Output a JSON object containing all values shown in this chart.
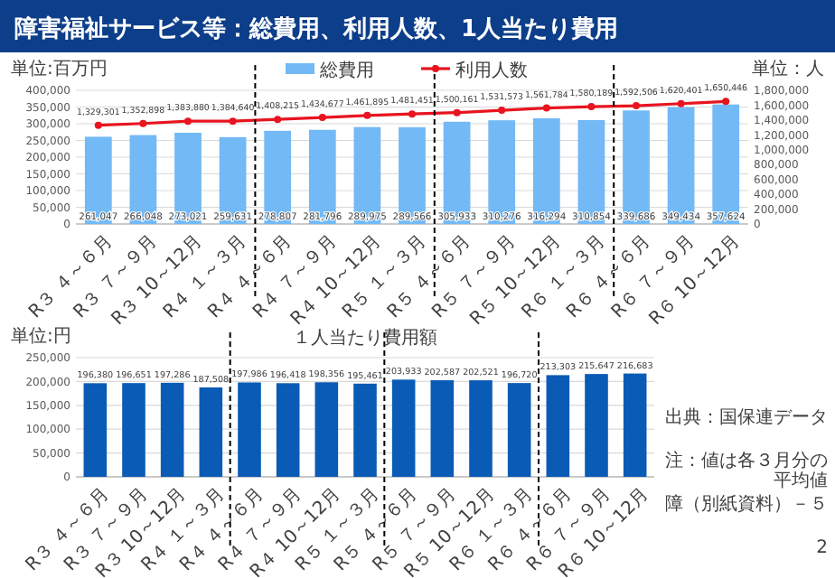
{
  "chart_data": [
    {
      "type": "bar",
      "title": "障害福祉サービス等：総費用、利用人数、1人当たり費用",
      "ylabel": "単位:百万円",
      "y2label": "単位：人",
      "categories": [
        "R３ ４～６月",
        "R３ ７～９月",
        "R３ 10～12月",
        "R４ １～３月",
        "R４ ４～６月",
        "R４ ７～９月",
        "R４ 10～12月",
        "R５ １～３月",
        "R５ ４～６月",
        "R５ ７～９月",
        "R５ 10～12月",
        "R６ １～３月",
        "R６ ４～６月",
        "R６ ７～９月",
        "R６ 10～12月"
      ],
      "series": [
        {
          "name": "総費用",
          "type": "bar",
          "color": "#72b9f6",
          "values": [
            261047,
            266048,
            273021,
            259631,
            278807,
            281796,
            289975,
            289566,
            305933,
            310276,
            316294,
            310854,
            339686,
            349434,
            357624
          ],
          "value_labels": [
            "261,047",
            "266,048",
            "273,021",
            "259,631",
            "278,807",
            "281,796",
            "289,975",
            "289,566",
            "305,933",
            "310,276",
            "316,294",
            "310,854",
            "339,686",
            "349,434",
            "357,624"
          ]
        },
        {
          "name": "利用人数",
          "type": "line",
          "axis": "y2",
          "color": "#e8141f",
          "values": [
            1329301,
            1352898,
            1383880,
            1384640,
            1408215,
            1434677,
            1461895,
            1481451,
            1500161,
            1531573,
            1561784,
            1580189,
            1592506,
            1620401,
            1650446
          ],
          "value_labels": [
            "1,329,301",
            "1,352,898",
            "1,383,880",
            "1,384,640",
            "1,408,215",
            "1,434,677",
            "1,461,895",
            "1,481,451",
            "1,500,161",
            "1,531,573",
            "1,561,784",
            "1,580,189",
            "1,592,506",
            "1,620,401",
            "1,650,446"
          ]
        }
      ],
      "ylim": [
        0,
        400000
      ],
      "yticks": [
        0,
        {
          "value": 50000,
          "label": "50,000"
        },
        {
          "value": 100000,
          "label": "100,000"
        },
        {
          "value": 150000,
          "label": "150,000"
        },
        {
          "value": 200000,
          "label": "200,000"
        },
        {
          "value": 250000,
          "label": "250,000"
        },
        {
          "value": 300000,
          "label": "300,000"
        },
        {
          "value": 350000,
          "label": "350,000"
        },
        {
          "value": 400000,
          "label": "400,000"
        }
      ],
      "y2lim": [
        0,
        1800000
      ],
      "y2ticks": [
        0,
        {
          "value": 200000,
          "label": "200,000"
        },
        {
          "value": 400000,
          "label": "400,000"
        },
        {
          "value": 600000,
          "label": "600,000"
        },
        {
          "value": 800000,
          "label": "800,000"
        },
        {
          "value": 1000000,
          "label": "1,000,000"
        },
        {
          "value": 1200000,
          "label": "1,200,000"
        },
        {
          "value": 1400000,
          "label": "1,400,000"
        },
        {
          "value": 1600000,
          "label": "1,600,000"
        },
        {
          "value": 1800000,
          "label": "1,800,000"
        }
      ],
      "grid": "y",
      "legend": "top",
      "marker": "circle"
    },
    {
      "type": "bar",
      "title": "１人当たり費用額",
      "ylabel": "単位:円",
      "categories": [
        "R３ ４～６月",
        "R３ ７～９月",
        "R３ 10～12月",
        "R４ １～３月",
        "R４ ４～６月",
        "R４ ７～９月",
        "R４ 10～12月",
        "R５ １～３月",
        "R５ ４～６月",
        "R５ ７～９月",
        "R５ 10～12月",
        "R６ １～３月",
        "R６ ４～６月",
        "R６ ７～９月",
        "R６ 10～12月"
      ],
      "series": [
        {
          "color": "#0a5bb5",
          "values": [
            196380,
            196651,
            197286,
            187508,
            197986,
            196418,
            198356,
            195461,
            203933,
            202587,
            202521,
            196720,
            213303,
            215647,
            216683
          ],
          "value_labels": [
            "196,380",
            "196,651",
            "197,286",
            "187,508",
            "197,986",
            "196,418",
            "198,356",
            "195,461",
            "203,933",
            "202,587",
            "202,521",
            "196,720",
            "213,303",
            "215,647",
            "216,683"
          ]
        }
      ],
      "ylim": [
        0,
        250000
      ],
      "yticks": [
        0,
        {
          "value": 50000,
          "label": "50,000"
        },
        {
          "value": 100000,
          "label": "100,000"
        },
        {
          "value": 150000,
          "label": "150,000"
        },
        {
          "value": 200000,
          "label": "200,000"
        },
        {
          "value": 250000,
          "label": "250,000"
        }
      ],
      "grid": "y",
      "annotations": [
        "出典：国保連データ",
        "注：値は各３月分の平均値",
        "障（別紙資料）－５",
        "2"
      ]
    }
  ]
}
